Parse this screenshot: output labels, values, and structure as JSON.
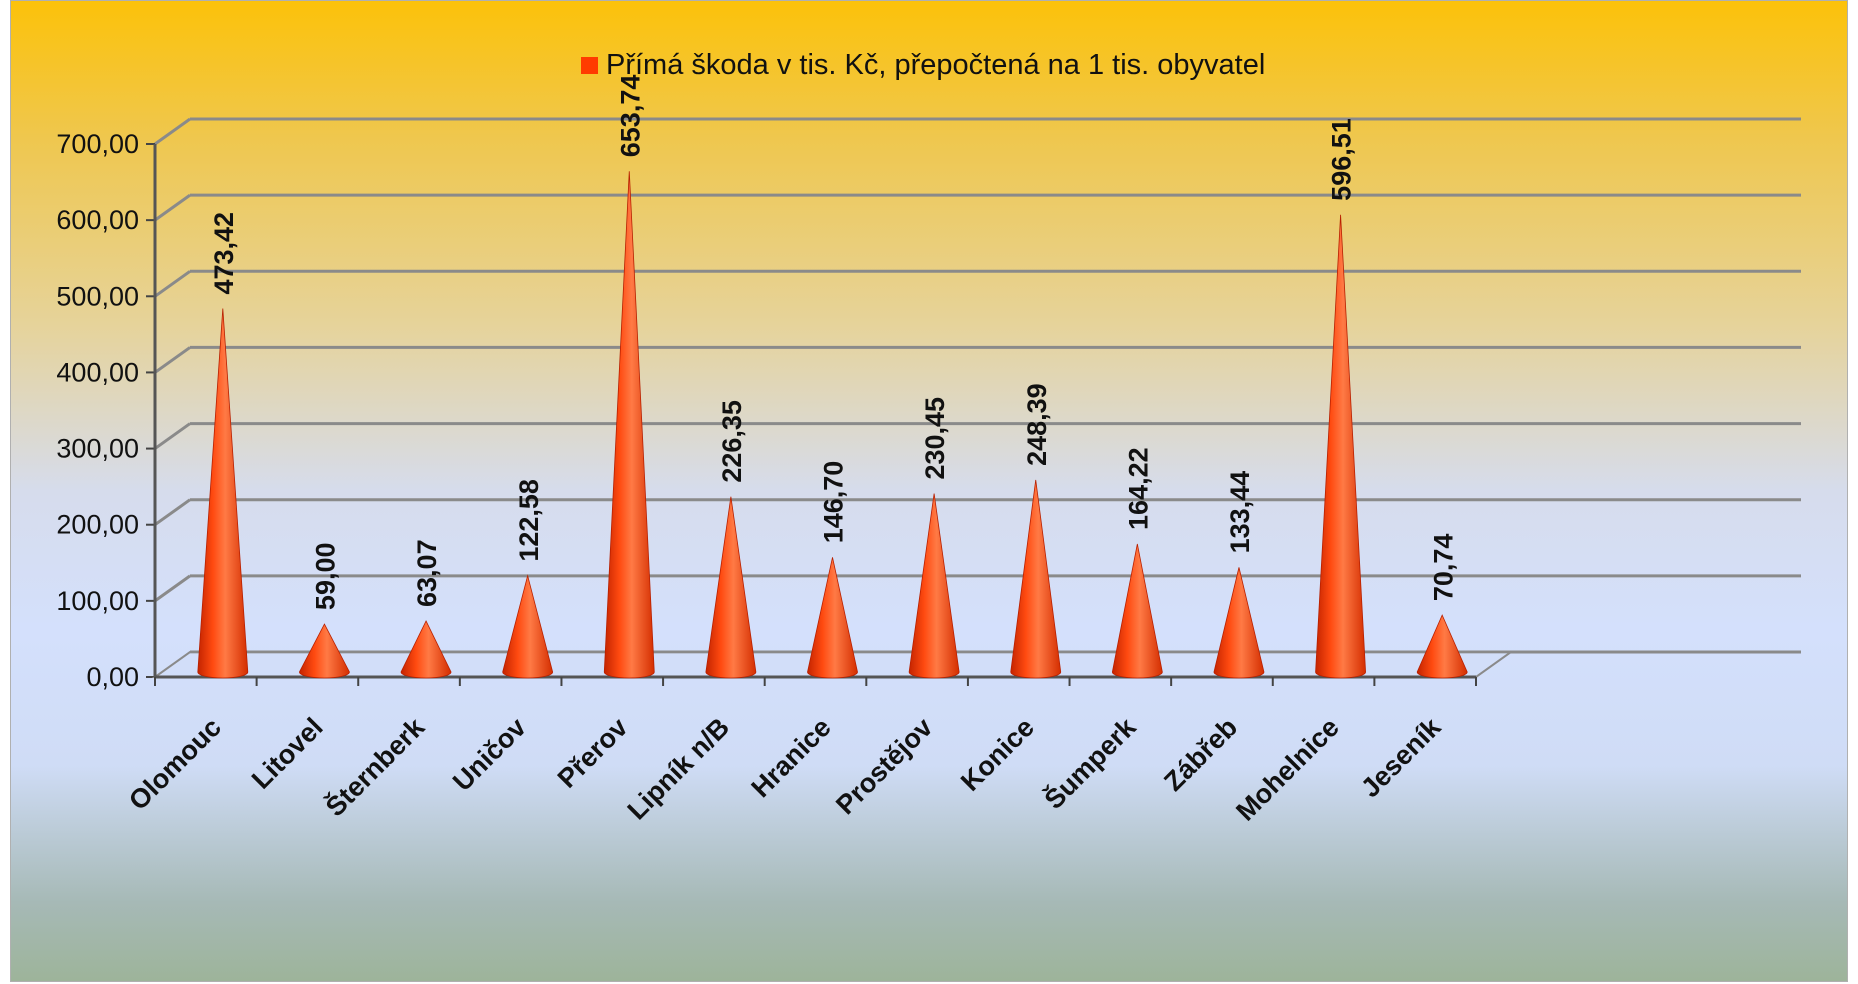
{
  "chart_data": {
    "type": "bar",
    "style": "3d-cone",
    "legend": {
      "label": "Přímá škoda v tis. Kč, přepočtená na 1 tis. obyvatel",
      "placement": "top"
    },
    "categories": [
      "Olomouc",
      "Litovel",
      "Šternberk",
      "Uničov",
      "Přerov",
      "Lipník n/B",
      "Hranice",
      "Prostějov",
      "Konice",
      "Šumperk",
      "Zábřeb",
      "Mohelnice",
      "Jeseník"
    ],
    "series": [
      {
        "name": "Přímá škoda v tis. Kč, přepočtená na 1 tis. obyvatel",
        "values": [
          473.42,
          59.0,
          63.07,
          122.58,
          653.74,
          226.35,
          146.7,
          230.45,
          248.39,
          164.22,
          133.44,
          596.51,
          70.74
        ],
        "data_labels": [
          "473,42",
          "59,00",
          "63,07",
          "122,58",
          "653,74",
          "226,35",
          "146,70",
          "230,45",
          "248,39",
          "164,22",
          "133,44",
          "596,51",
          "70,74"
        ],
        "color": "#ff3b00"
      }
    ],
    "y_ticks": [
      "0,00",
      "100,00",
      "200,00",
      "300,00",
      "400,00",
      "500,00",
      "600,00",
      "700,00"
    ],
    "ylim": [
      0,
      700
    ],
    "grid": true,
    "colors": {
      "cone": "#ff3b00",
      "grid": "#8a8a8a"
    }
  }
}
